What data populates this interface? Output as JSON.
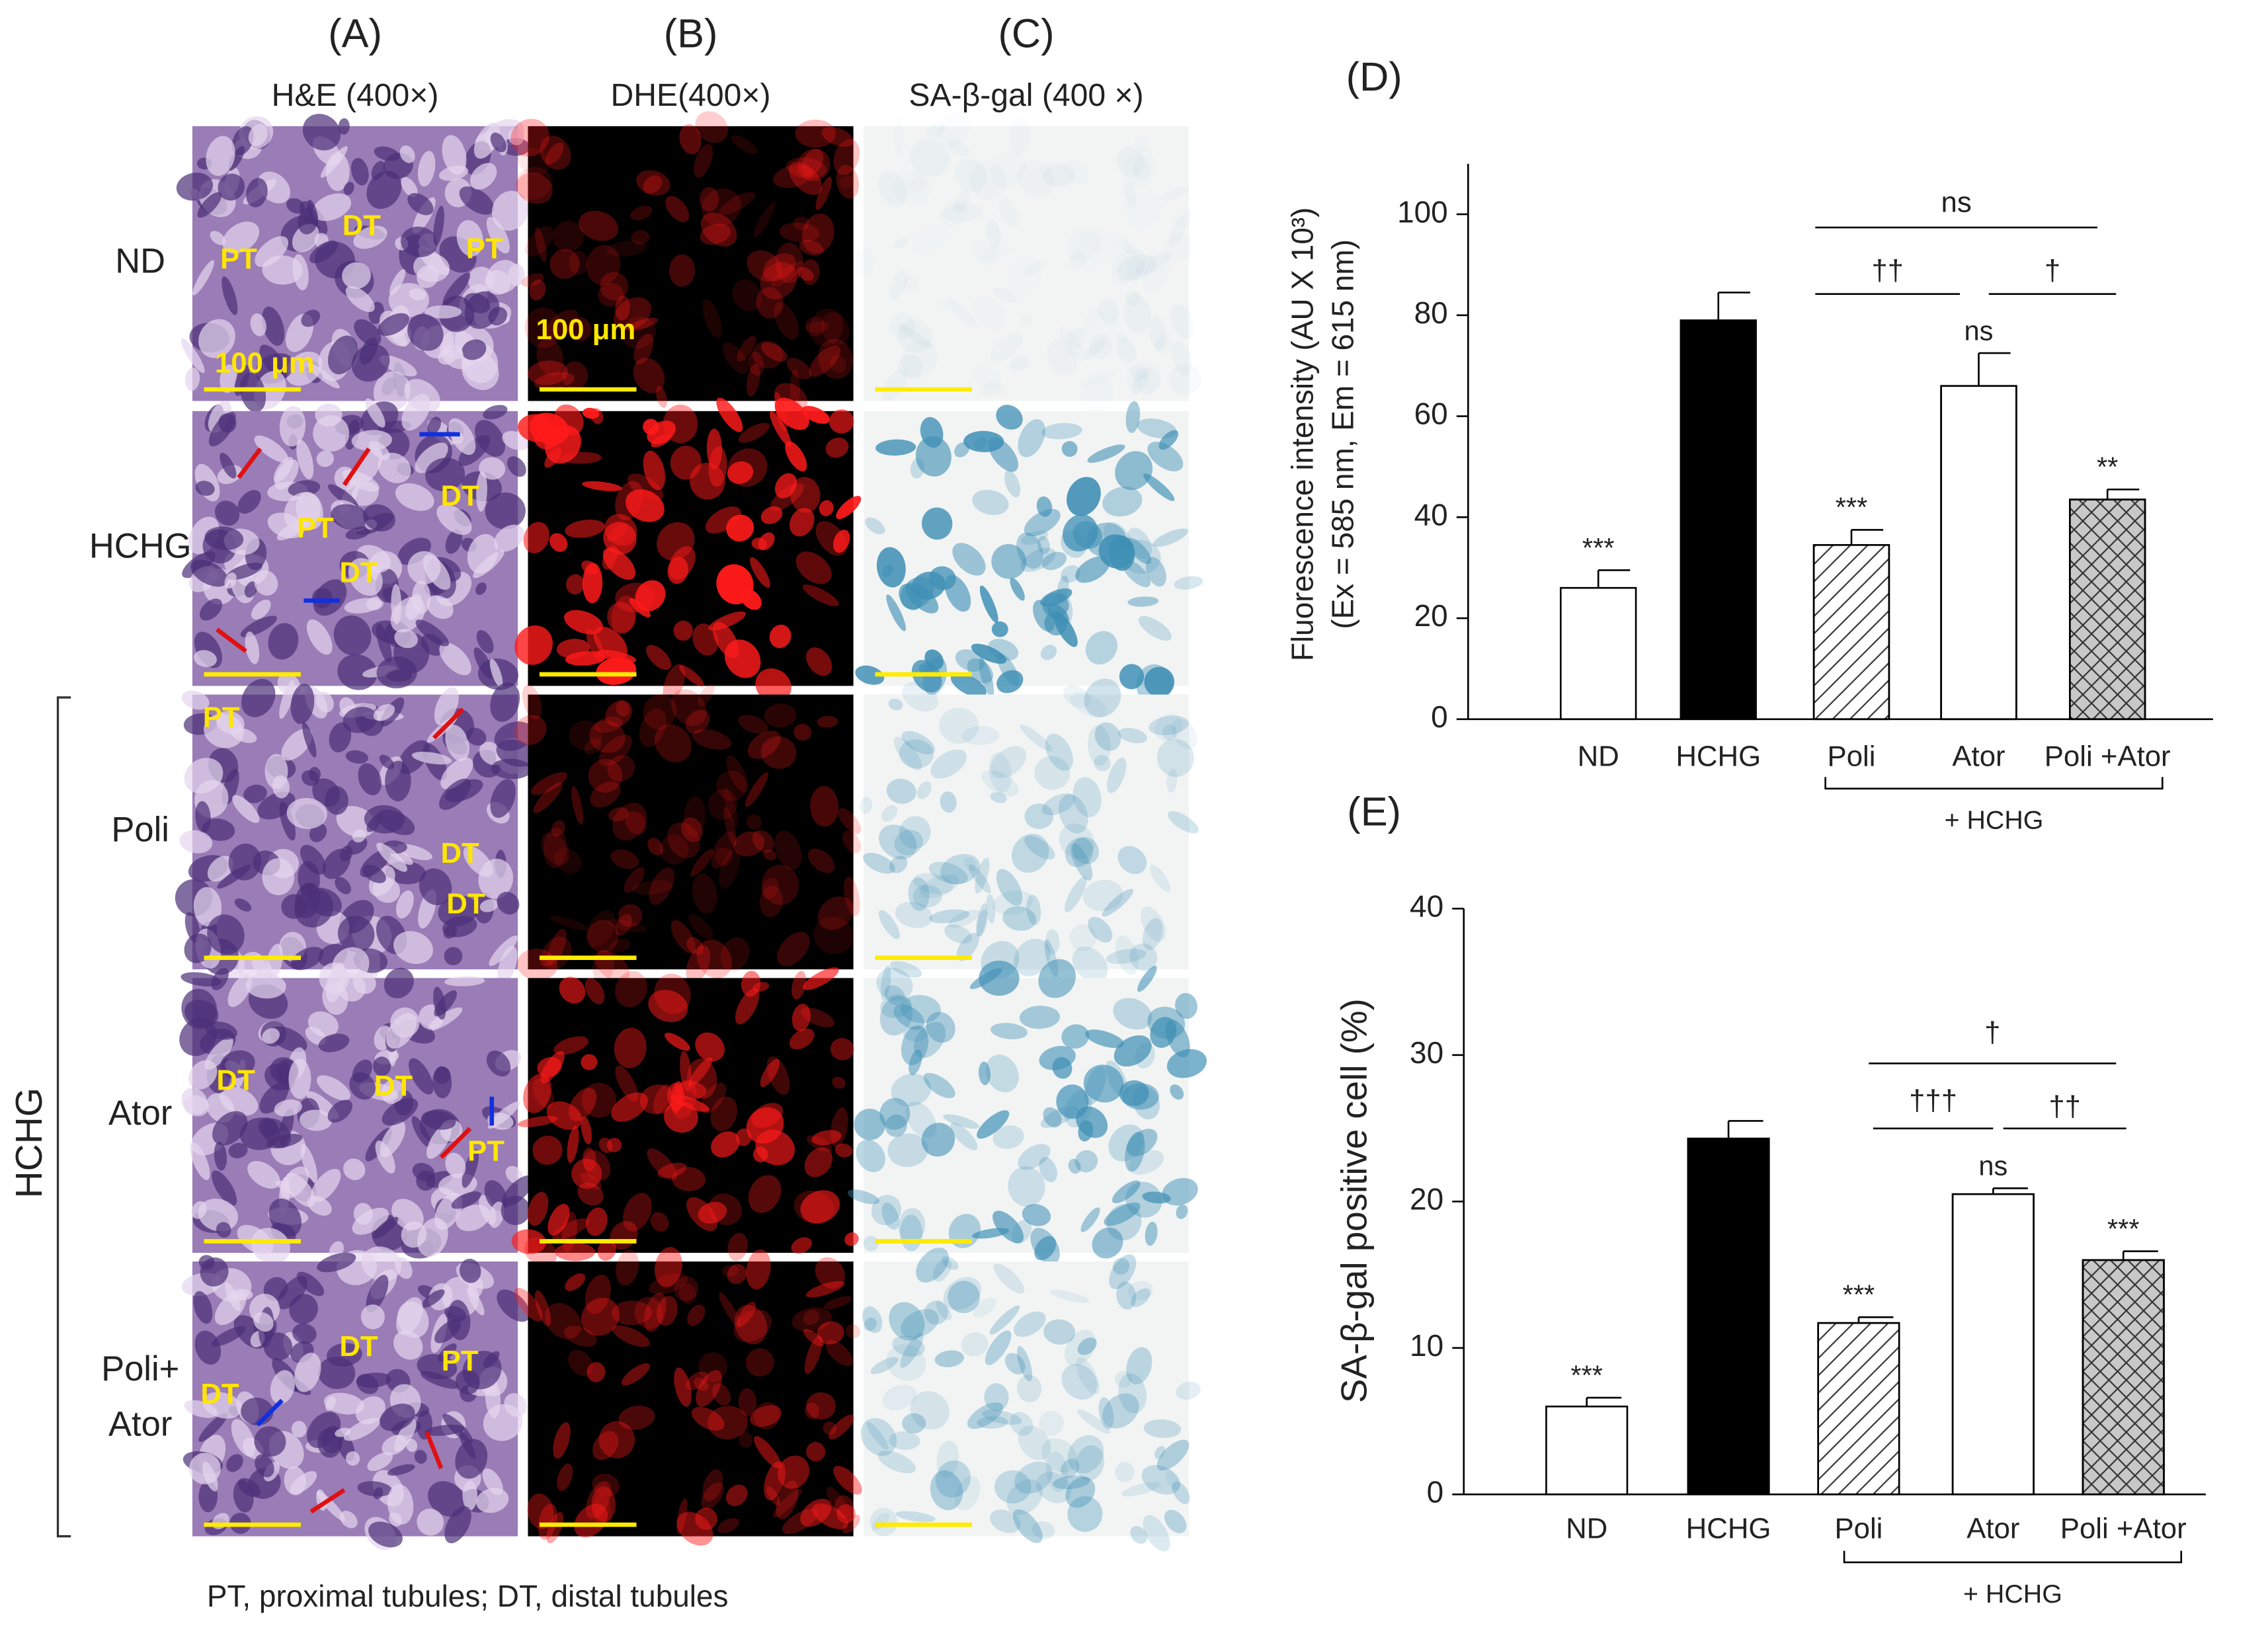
{
  "figure": {
    "columns": [
      {
        "label": "(A)",
        "title": "H&E (400×)"
      },
      {
        "label": "(B)",
        "title": "DHE(400×)"
      },
      {
        "label": "(C)",
        "title": "SA-β-gal (400 ×)"
      }
    ],
    "rows": [
      [
        "ND"
      ],
      [
        "HCHG"
      ],
      [
        "Poli"
      ],
      [
        "Ator"
      ],
      [
        "Poli+",
        "Ator"
      ]
    ],
    "group_label": "HCHG",
    "scale_bar_labels": [
      "100 μm",
      "100 μm"
    ],
    "tissue_labels": [
      [
        "PT",
        "DT",
        "PT"
      ],
      [
        "DT",
        "PT",
        "DT"
      ],
      [
        "PT",
        "DT",
        "DT"
      ],
      [
        "DT",
        "DT",
        "PT"
      ],
      [
        "DT",
        "PT",
        "DT"
      ]
    ],
    "footnote": "PT, proximal tubules; DT, distal tubules"
  },
  "chart_data": [
    {
      "type": "bar",
      "title": "(D)",
      "ylabel": [
        "Fluorescence intensity (AU X 10³)",
        "(Ex = 585 nm, Em = 615 nm)"
      ],
      "categories": [
        "ND",
        "HCHG",
        "Poli",
        "Ator",
        "Poli +Ator"
      ],
      "values": [
        26,
        79,
        34.5,
        66,
        43.5
      ],
      "errors": [
        3.5,
        5.5,
        3,
        6.5,
        2
      ],
      "colors": [
        "#ffffff",
        "#000000",
        "#ffffff",
        "#ffffff",
        "#c8c8c8"
      ],
      "hatches": [
        null,
        null,
        "/",
        "\\",
        "x"
      ],
      "annotations": [
        "***",
        null,
        "***",
        "ns",
        "**"
      ],
      "comparisons": [
        "ns",
        "††",
        "†"
      ],
      "group_label": "+ HCHG",
      "ylim": [
        0,
        110
      ],
      "yticks": [
        0,
        20,
        40,
        60,
        80,
        100
      ]
    },
    {
      "type": "bar",
      "title": "(E)",
      "ylabel": [
        "SA-β-gal positive cell (%)"
      ],
      "categories": [
        "ND",
        "HCHG",
        "Poli",
        "Ator",
        "Poli +Ator"
      ],
      "values": [
        6,
        24.3,
        11.7,
        20.5,
        16
      ],
      "errors": [
        0.6,
        1.2,
        0.4,
        0.4,
        0.6
      ],
      "colors": [
        "#ffffff",
        "#000000",
        "#ffffff",
        "#ffffff",
        "#c8c8c8"
      ],
      "hatches": [
        null,
        null,
        "/",
        "\\",
        "x"
      ],
      "annotations": [
        "***",
        null,
        "***",
        "ns",
        "***"
      ],
      "comparisons": [
        "†",
        "†††",
        "††"
      ],
      "group_label": "+ HCHG",
      "ylim": [
        0,
        40
      ],
      "yticks": [
        0,
        10,
        20,
        30,
        40
      ]
    }
  ]
}
